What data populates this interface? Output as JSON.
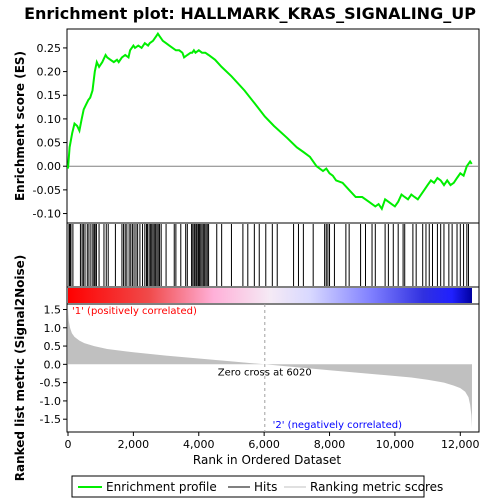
{
  "chart_data": {
    "type": "line",
    "title": "Enrichment plot: HALLMARK_KRAS_SIGNALING_UP",
    "top_panel": {
      "ylabel": "Enrichment score (ES)",
      "ylim": [
        -0.12,
        0.29
      ],
      "yticks": [
        -0.1,
        -0.05,
        0.0,
        0.05,
        0.1,
        0.15,
        0.2,
        0.25
      ],
      "ytick_labels": [
        "-0.10",
        "-0.05",
        "0.00",
        "0.05",
        "0.10",
        "0.15",
        "0.20",
        "0.25"
      ],
      "series": [
        {
          "name": "Enrichment profile",
          "color": "#00ee00",
          "x": [
            0,
            50,
            130,
            200,
            280,
            350,
            420,
            480,
            550,
            620,
            680,
            750,
            820,
            880,
            950,
            1050,
            1150,
            1200,
            1300,
            1400,
            1500,
            1550,
            1650,
            1750,
            1850,
            1900,
            2000,
            2050,
            2150,
            2250,
            2350,
            2450,
            2500,
            2600,
            2700,
            2750,
            2800,
            2900,
            3000,
            3100,
            3200,
            3300,
            3400,
            3500,
            3550,
            3650,
            3750,
            3800,
            3850,
            3900,
            4000,
            4100,
            4200,
            4300,
            4500,
            4700,
            5000,
            5400,
            5800,
            6020,
            6300,
            6700,
            7000,
            7200,
            7400,
            7600,
            7800,
            7900,
            8000,
            8100,
            8200,
            8400,
            8600,
            8800,
            9000,
            9200,
            9400,
            9500,
            9600,
            9700,
            9800,
            9900,
            10000,
            10100,
            10200,
            10300,
            10400,
            10500,
            10600,
            10700,
            10800,
            10900,
            11000,
            11100,
            11200,
            11300,
            11400,
            11500,
            11600,
            11700,
            11800,
            11900,
            12000,
            12100,
            12150,
            12200,
            12300,
            12350
          ],
          "y": [
            -0.005,
            0.04,
            0.07,
            0.09,
            0.085,
            0.075,
            0.1,
            0.12,
            0.13,
            0.14,
            0.145,
            0.16,
            0.2,
            0.22,
            0.21,
            0.22,
            0.235,
            0.23,
            0.225,
            0.22,
            0.225,
            0.22,
            0.23,
            0.235,
            0.23,
            0.245,
            0.255,
            0.25,
            0.255,
            0.25,
            0.26,
            0.255,
            0.26,
            0.265,
            0.275,
            0.28,
            0.275,
            0.265,
            0.26,
            0.255,
            0.25,
            0.245,
            0.245,
            0.24,
            0.23,
            0.235,
            0.24,
            0.24,
            0.245,
            0.24,
            0.245,
            0.24,
            0.24,
            0.235,
            0.225,
            0.21,
            0.19,
            0.16,
            0.125,
            0.105,
            0.085,
            0.06,
            0.04,
            0.03,
            0.02,
            0.0,
            -0.01,
            -0.005,
            -0.015,
            -0.02,
            -0.03,
            -0.035,
            -0.05,
            -0.065,
            -0.065,
            -0.075,
            -0.085,
            -0.08,
            -0.09,
            -0.07,
            -0.075,
            -0.08,
            -0.085,
            -0.075,
            -0.06,
            -0.065,
            -0.07,
            -0.06,
            -0.065,
            -0.07,
            -0.06,
            -0.05,
            -0.04,
            -0.03,
            -0.035,
            -0.025,
            -0.03,
            -0.04,
            -0.03,
            -0.04,
            -0.035,
            -0.025,
            -0.015,
            -0.02,
            -0.01,
            0.0,
            0.01,
            0.005
          ]
        }
      ],
      "hits": [
        30,
        60,
        90,
        150,
        380,
        430,
        470,
        520,
        590,
        640,
        700,
        760,
        800,
        830,
        870,
        950,
        1100,
        1170,
        1230,
        1450,
        1650,
        1700,
        1750,
        1800,
        1870,
        1920,
        1970,
        2020,
        2080,
        2130,
        2200,
        2280,
        2350,
        2400,
        2430,
        2480,
        2520,
        2560,
        2600,
        2640,
        2680,
        2720,
        2760,
        2800,
        2850,
        3000,
        3250,
        3300,
        3450,
        3600,
        3650,
        3780,
        3800,
        3850,
        3880,
        3920,
        3950,
        3990,
        4020,
        4060,
        4100,
        4140,
        4180,
        4220,
        4260,
        4300,
        4550,
        4700,
        5000,
        5350,
        5500,
        5700,
        5850,
        6050,
        6250,
        6400,
        6900,
        7050,
        7200,
        7500,
        7850,
        7900,
        7950,
        8000,
        8150,
        8500,
        8600,
        8950,
        9100,
        9300,
        9400,
        9700,
        9800,
        9950,
        10100,
        10250,
        10300,
        10550,
        10650,
        10850,
        10950,
        11050,
        11150,
        11300,
        11400,
        11500,
        11650,
        11750,
        11900,
        12000,
        12100,
        12200,
        12250
      ]
    },
    "bottom_panel": {
      "ylabel": "Ranked list metric (Signal2Noise)",
      "ylim": [
        -1.85,
        1.65
      ],
      "yticks": [
        -1.5,
        -1.0,
        -0.5,
        0.0,
        0.5,
        1.0,
        1.5
      ],
      "ytick_labels": [
        "-1.5",
        "-1.0",
        "-0.5",
        "0.0",
        "0.5",
        "1.0",
        "1.5"
      ],
      "series": [
        {
          "name": "Ranking metric scores",
          "color": "#c0c0c0",
          "x": [
            0,
            20,
            60,
            120,
            200,
            350,
            500,
            800,
            1200,
            2000,
            3000,
            4000,
            5000,
            6020,
            7000,
            8000,
            9000,
            10000,
            10500,
            11000,
            11500,
            11800,
            12000,
            12150,
            12250,
            12300,
            12340,
            12358
          ],
          "y": [
            1.55,
            1.2,
            1.0,
            0.85,
            0.75,
            0.65,
            0.58,
            0.5,
            0.42,
            0.33,
            0.24,
            0.16,
            0.08,
            0.0,
            -0.08,
            -0.16,
            -0.24,
            -0.32,
            -0.36,
            -0.42,
            -0.5,
            -0.58,
            -0.65,
            -0.75,
            -0.9,
            -1.1,
            -1.4,
            -1.75
          ]
        }
      ],
      "annotations": {
        "zero_cross": "Zero cross at 6020",
        "zero_cross_x": 6020,
        "positive": "'1' (positively correlated)",
        "negative": "'2' (negatively correlated)",
        "positive_color": "#ff0000",
        "negative_color": "#0000ff"
      }
    },
    "xlabel": "Rank in Ordered Dataset",
    "xlim": [
      0,
      12358
    ],
    "xticks": [
      0,
      2000,
      4000,
      6000,
      8000,
      10000,
      12000
    ],
    "xtick_labels": [
      "0",
      "2,000",
      "4,000",
      "6,000",
      "8,000",
      "10,000",
      "12,000"
    ],
    "legend": {
      "placement": "bottom",
      "items": [
        {
          "label": "Enrichment profile",
          "color": "#00ee00"
        },
        {
          "label": "Hits",
          "color": "#000000"
        },
        {
          "label": "Ranking metric scores",
          "color": "#c0c0c0"
        }
      ]
    }
  }
}
